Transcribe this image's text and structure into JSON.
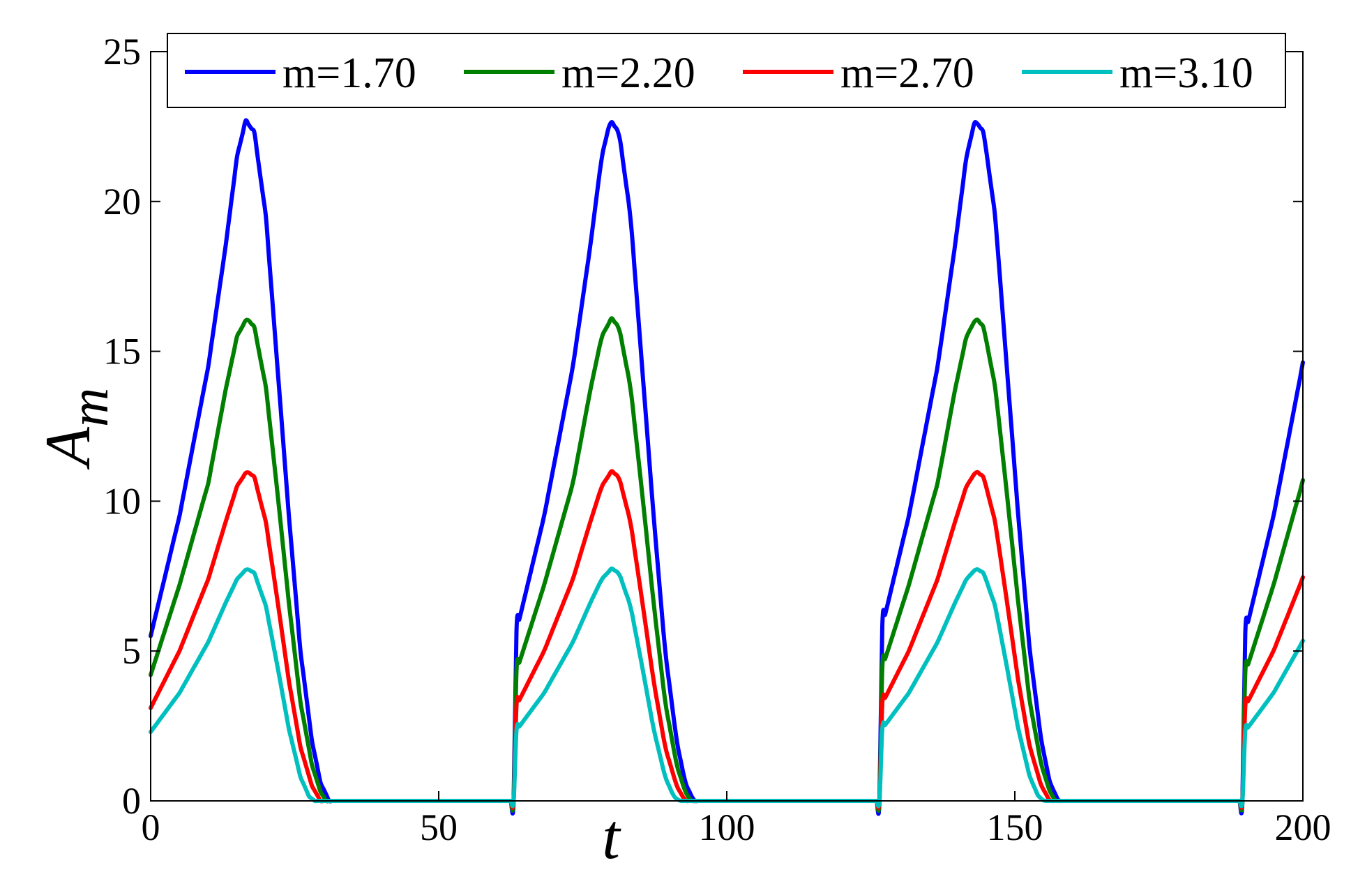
{
  "chart_data": {
    "type": "line",
    "xlabel": "t",
    "ylabel_main": "A",
    "ylabel_sub": "m",
    "xlim": [
      0,
      200
    ],
    "ylim": [
      0,
      25
    ],
    "xticks": [
      0,
      50,
      100,
      150,
      200
    ],
    "yticks": [
      0,
      5,
      10,
      15,
      20,
      25
    ],
    "xtick_labels": [
      "0",
      "50",
      "100",
      "150",
      "200"
    ],
    "ytick_labels": [
      "0",
      "5",
      "10",
      "15",
      "20",
      "25"
    ],
    "grid": false,
    "legend_position": "top",
    "legend_orientation": "horizontal",
    "period": 63.3,
    "series": [
      {
        "name": "m=1.70",
        "color": "#0000ff",
        "points": [
          [
            0,
            5.5
          ],
          [
            5,
            9.5
          ],
          [
            10,
            14.5
          ],
          [
            13,
            18.5
          ],
          [
            15,
            21.5
          ],
          [
            16.5,
            22.7
          ],
          [
            18,
            22.3
          ],
          [
            20,
            19.5
          ],
          [
            22,
            14.5
          ],
          [
            24,
            9.5
          ],
          [
            26,
            5.0
          ],
          [
            28,
            2.0
          ],
          [
            29.5,
            0.6
          ],
          [
            31,
            0.0
          ],
          [
            63.3,
            0.0
          ]
        ]
      },
      {
        "name": "m=2.20",
        "color": "#007f00",
        "points": [
          [
            0,
            4.2
          ],
          [
            5,
            7.2
          ],
          [
            10,
            10.6
          ],
          [
            13,
            13.7
          ],
          [
            15,
            15.5
          ],
          [
            16.7,
            16.1
          ],
          [
            18,
            15.8
          ],
          [
            20,
            13.8
          ],
          [
            22,
            10.3
          ],
          [
            24,
            6.6
          ],
          [
            26,
            3.3
          ],
          [
            28,
            1.2
          ],
          [
            29.5,
            0.3
          ],
          [
            30.5,
            0.0
          ],
          [
            63.3,
            0.0
          ]
        ]
      },
      {
        "name": "m=2.70",
        "color": "#ff0000",
        "points": [
          [
            0,
            3.1
          ],
          [
            5,
            5.0
          ],
          [
            10,
            7.4
          ],
          [
            13,
            9.3
          ],
          [
            15,
            10.5
          ],
          [
            16.7,
            11.0
          ],
          [
            18,
            10.8
          ],
          [
            20,
            9.3
          ],
          [
            22,
            6.7
          ],
          [
            24,
            4.0
          ],
          [
            26,
            1.8
          ],
          [
            28,
            0.5
          ],
          [
            29.5,
            0.0
          ],
          [
            63.3,
            0.0
          ]
        ]
      },
      {
        "name": "m=3.10",
        "color": "#00bfbf",
        "points": [
          [
            0,
            2.3
          ],
          [
            5,
            3.6
          ],
          [
            10,
            5.3
          ],
          [
            13,
            6.6
          ],
          [
            15,
            7.4
          ],
          [
            16.7,
            7.75
          ],
          [
            18,
            7.6
          ],
          [
            20,
            6.5
          ],
          [
            22,
            4.5
          ],
          [
            24,
            2.4
          ],
          [
            26,
            0.8
          ],
          [
            27.5,
            0.15
          ],
          [
            28.5,
            0.0
          ],
          [
            63.3,
            0.0
          ]
        ]
      }
    ]
  }
}
